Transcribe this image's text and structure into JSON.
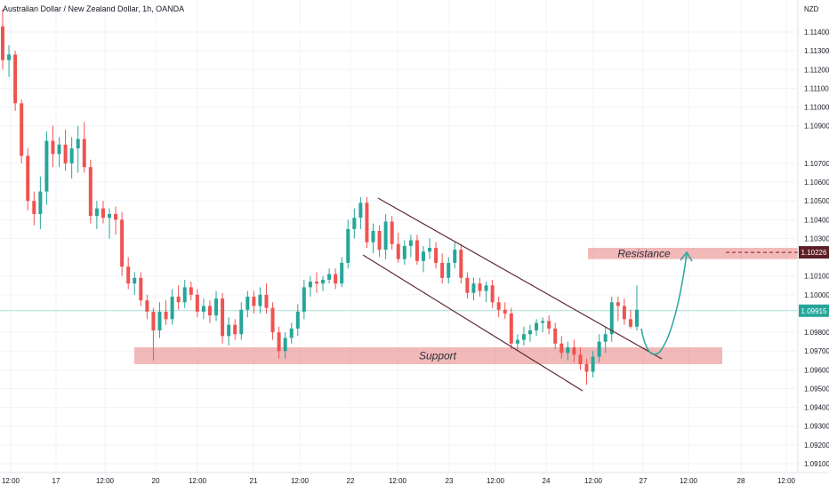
{
  "header": {
    "symbol_title": "Australian Dollar / New Zealand Dollar, 1h, OANDA",
    "currency": "NZD"
  },
  "chart_data": {
    "type": "candlestick",
    "title": "Australian Dollar / New Zealand Dollar, 1h, OANDA",
    "ylabel": "NZD",
    "ylim": [
      1.0905,
      1.1155
    ],
    "y_ticks": [
      1.114,
      1.113,
      1.112,
      1.111,
      1.11,
      1.109,
      1.107,
      1.106,
      1.105,
      1.104,
      1.103,
      1.101,
      1.1,
      1.098,
      1.097,
      1.096,
      1.095,
      1.094,
      1.093,
      1.092,
      1.091
    ],
    "x_ticks": [
      "12:00",
      "17",
      "12:00",
      "20",
      "12:00",
      "21",
      "12:00",
      "22",
      "12:00",
      "23",
      "12:00",
      "24",
      "12:00",
      "27",
      "12:00",
      "28",
      "12:00"
    ],
    "price_labels": {
      "resistance_level": "1.10226",
      "current_price": "1.09915"
    },
    "current_price": 1.09915,
    "annotations": {
      "resistance": {
        "label": "Resistance",
        "price_from": 1.1019,
        "price_to": 1.1025
      },
      "support": {
        "label": "Support",
        "price_from": 1.0963,
        "price_to": 1.0972
      }
    },
    "colors": {
      "up": "#26a69a",
      "down": "#ef5350",
      "zone": "#e57373",
      "channel": "#5d2a35",
      "arrow": "#26a69a",
      "current_line": "#26a69a"
    },
    "candles": [
      {
        "o": 1.1143,
        "h": 1.1152,
        "l": 1.112,
        "c": 1.1125
      },
      {
        "o": 1.1125,
        "h": 1.1133,
        "l": 1.1116,
        "c": 1.1128
      },
      {
        "o": 1.1128,
        "h": 1.113,
        "l": 1.1098,
        "c": 1.1102
      },
      {
        "o": 1.1102,
        "h": 1.1104,
        "l": 1.107,
        "c": 1.1074
      },
      {
        "o": 1.1074,
        "h": 1.1078,
        "l": 1.1045,
        "c": 1.105
      },
      {
        "o": 1.105,
        "h": 1.1055,
        "l": 1.1037,
        "c": 1.1043
      },
      {
        "o": 1.1043,
        "h": 1.1063,
        "l": 1.1035,
        "c": 1.1055
      },
      {
        "o": 1.1055,
        "h": 1.1087,
        "l": 1.1048,
        "c": 1.1082
      },
      {
        "o": 1.1082,
        "h": 1.109,
        "l": 1.1068,
        "c": 1.1075
      },
      {
        "o": 1.1075,
        "h": 1.1084,
        "l": 1.1068,
        "c": 1.108
      },
      {
        "o": 1.108,
        "h": 1.1088,
        "l": 1.1066,
        "c": 1.107
      },
      {
        "o": 1.107,
        "h": 1.1084,
        "l": 1.1062,
        "c": 1.1078
      },
      {
        "o": 1.1078,
        "h": 1.109,
        "l": 1.1065,
        "c": 1.1083
      },
      {
        "o": 1.1083,
        "h": 1.1092,
        "l": 1.1065,
        "c": 1.1068
      },
      {
        "o": 1.1068,
        "h": 1.1072,
        "l": 1.1038,
        "c": 1.1042
      },
      {
        "o": 1.1042,
        "h": 1.105,
        "l": 1.1035,
        "c": 1.1046
      },
      {
        "o": 1.1046,
        "h": 1.105,
        "l": 1.1038,
        "c": 1.1041
      },
      {
        "o": 1.1041,
        "h": 1.1046,
        "l": 1.103,
        "c": 1.1043
      },
      {
        "o": 1.1043,
        "h": 1.1047,
        "l": 1.1032,
        "c": 1.104
      },
      {
        "o": 1.104,
        "h": 1.1044,
        "l": 1.101,
        "c": 1.1015
      },
      {
        "o": 1.1015,
        "h": 1.102,
        "l": 1.1003,
        "c": 1.1006
      },
      {
        "o": 1.1006,
        "h": 1.1012,
        "l": 1.1,
        "c": 1.1009
      },
      {
        "o": 1.1009,
        "h": 1.1012,
        "l": 1.0994,
        "c": 1.0997
      },
      {
        "o": 1.0997,
        "h": 1.1,
        "l": 1.0987,
        "c": 1.0991
      },
      {
        "o": 1.0991,
        "h": 1.0993,
        "l": 1.0965,
        "c": 1.0981
      },
      {
        "o": 1.0981,
        "h": 1.0996,
        "l": 1.0977,
        "c": 1.0991
      },
      {
        "o": 1.0991,
        "h": 1.0997,
        "l": 1.0984,
        "c": 1.0987
      },
      {
        "o": 1.0987,
        "h": 1.1003,
        "l": 1.0984,
        "c": 1.0999
      },
      {
        "o": 1.0999,
        "h": 1.1005,
        "l": 1.0992,
        "c": 1.0996
      },
      {
        "o": 1.0996,
        "h": 1.1008,
        "l": 1.0993,
        "c": 1.1004
      },
      {
        "o": 1.1004,
        "h": 1.1007,
        "l": 1.0997,
        "c": 1.1
      },
      {
        "o": 1.1,
        "h": 1.1003,
        "l": 1.0988,
        "c": 1.0991
      },
      {
        "o": 1.0991,
        "h": 1.0998,
        "l": 1.0987,
        "c": 1.0994
      },
      {
        "o": 1.0994,
        "h": 1.0997,
        "l": 1.0985,
        "c": 1.0989
      },
      {
        "o": 1.0989,
        "h": 1.1002,
        "l": 1.0986,
        "c": 1.0998
      },
      {
        "o": 1.0998,
        "h": 1.1001,
        "l": 1.0974,
        "c": 1.0978
      },
      {
        "o": 1.0978,
        "h": 1.0988,
        "l": 1.0973,
        "c": 1.0984
      },
      {
        "o": 1.0984,
        "h": 1.0987,
        "l": 1.0976,
        "c": 1.0979
      },
      {
        "o": 1.0979,
        "h": 1.0996,
        "l": 1.0976,
        "c": 1.0992
      },
      {
        "o": 1.0992,
        "h": 1.1002,
        "l": 1.0988,
        "c": 1.0999
      },
      {
        "o": 1.0999,
        "h": 1.1002,
        "l": 1.099,
        "c": 1.0994
      },
      {
        "o": 1.0994,
        "h": 1.1004,
        "l": 1.099,
        "c": 1.1
      },
      {
        "o": 1.1,
        "h": 1.1006,
        "l": 1.099,
        "c": 1.0993
      },
      {
        "o": 1.0993,
        "h": 1.0996,
        "l": 1.0976,
        "c": 1.098
      },
      {
        "o": 1.098,
        "h": 1.0983,
        "l": 1.0966,
        "c": 1.097
      },
      {
        "o": 1.097,
        "h": 1.098,
        "l": 1.0966,
        "c": 1.0977
      },
      {
        "o": 1.0977,
        "h": 1.0985,
        "l": 1.0974,
        "c": 1.0982
      },
      {
        "o": 1.0982,
        "h": 1.0995,
        "l": 1.0978,
        "c": 1.0991
      },
      {
        "o": 1.0991,
        "h": 1.1008,
        "l": 1.0987,
        "c": 1.1004
      },
      {
        "o": 1.1004,
        "h": 1.101,
        "l": 1.0999,
        "c": 1.1007
      },
      {
        "o": 1.1007,
        "h": 1.1012,
        "l": 1.1001,
        "c": 1.1006
      },
      {
        "o": 1.1006,
        "h": 1.101,
        "l": 1.1002,
        "c": 1.1008
      },
      {
        "o": 1.1008,
        "h": 1.1014,
        "l": 1.1006,
        "c": 1.1011
      },
      {
        "o": 1.1011,
        "h": 1.1014,
        "l": 1.1003,
        "c": 1.1006
      },
      {
        "o": 1.1006,
        "h": 1.102,
        "l": 1.1004,
        "c": 1.1017
      },
      {
        "o": 1.1017,
        "h": 1.104,
        "l": 1.1014,
        "c": 1.1035
      },
      {
        "o": 1.1035,
        "h": 1.1046,
        "l": 1.103,
        "c": 1.1041
      },
      {
        "o": 1.1041,
        "h": 1.1052,
        "l": 1.1035,
        "c": 1.1049
      },
      {
        "o": 1.1049,
        "h": 1.1052,
        "l": 1.1025,
        "c": 1.1028
      },
      {
        "o": 1.1028,
        "h": 1.1038,
        "l": 1.1022,
        "c": 1.1034
      },
      {
        "o": 1.1034,
        "h": 1.1037,
        "l": 1.102,
        "c": 1.1024
      },
      {
        "o": 1.1024,
        "h": 1.1043,
        "l": 1.1019,
        "c": 1.1039
      },
      {
        "o": 1.1039,
        "h": 1.1042,
        "l": 1.1024,
        "c": 1.1027
      },
      {
        "o": 1.1027,
        "h": 1.1033,
        "l": 1.1017,
        "c": 1.1019
      },
      {
        "o": 1.1019,
        "h": 1.1029,
        "l": 1.1016,
        "c": 1.1026
      },
      {
        "o": 1.1026,
        "h": 1.1032,
        "l": 1.102,
        "c": 1.1029
      },
      {
        "o": 1.1029,
        "h": 1.1032,
        "l": 1.1016,
        "c": 1.1018
      },
      {
        "o": 1.1018,
        "h": 1.1026,
        "l": 1.1012,
        "c": 1.1023
      },
      {
        "o": 1.1023,
        "h": 1.103,
        "l": 1.1019,
        "c": 1.1025
      },
      {
        "o": 1.1025,
        "h": 1.1028,
        "l": 1.1014,
        "c": 1.1017
      },
      {
        "o": 1.1017,
        "h": 1.1022,
        "l": 1.1006,
        "c": 1.1009
      },
      {
        "o": 1.1009,
        "h": 1.102,
        "l": 1.1006,
        "c": 1.1017
      },
      {
        "o": 1.1017,
        "h": 1.1028,
        "l": 1.1014,
        "c": 1.1024
      },
      {
        "o": 1.1024,
        "h": 1.1027,
        "l": 1.1006,
        "c": 1.1009
      },
      {
        "o": 1.1009,
        "h": 1.1012,
        "l": 1.0998,
        "c": 1.1001
      },
      {
        "o": 1.1001,
        "h": 1.1009,
        "l": 1.0997,
        "c": 1.1006
      },
      {
        "o": 1.1006,
        "h": 1.1009,
        "l": 1.0999,
        "c": 1.1002
      },
      {
        "o": 1.1002,
        "h": 1.1007,
        "l": 1.0996,
        "c": 1.1005
      },
      {
        "o": 1.1005,
        "h": 1.1008,
        "l": 1.0993,
        "c": 1.0996
      },
      {
        "o": 1.0996,
        "h": 1.0999,
        "l": 1.0988,
        "c": 1.0992
      },
      {
        "o": 1.0992,
        "h": 1.0996,
        "l": 1.0987,
        "c": 1.099
      },
      {
        "o": 1.099,
        "h": 1.0993,
        "l": 1.0971,
        "c": 1.0974
      },
      {
        "o": 1.0974,
        "h": 1.0979,
        "l": 1.097,
        "c": 1.0976
      },
      {
        "o": 1.0976,
        "h": 1.0983,
        "l": 1.0973,
        "c": 1.0979
      },
      {
        "o": 1.0979,
        "h": 1.0984,
        "l": 1.0975,
        "c": 1.0981
      },
      {
        "o": 1.0981,
        "h": 1.0987,
        "l": 1.0978,
        "c": 1.0985
      },
      {
        "o": 1.0985,
        "h": 1.0988,
        "l": 1.098,
        "c": 1.0986
      },
      {
        "o": 1.0986,
        "h": 1.0989,
        "l": 1.0979,
        "c": 1.0982
      },
      {
        "o": 1.0982,
        "h": 1.0985,
        "l": 1.0971,
        "c": 1.0974
      },
      {
        "o": 1.0974,
        "h": 1.0978,
        "l": 1.0966,
        "c": 1.0969
      },
      {
        "o": 1.0969,
        "h": 1.0975,
        "l": 1.0965,
        "c": 1.0972
      },
      {
        "o": 1.0972,
        "h": 1.0976,
        "l": 1.0964,
        "c": 1.0968
      },
      {
        "o": 1.0968,
        "h": 1.0972,
        "l": 1.096,
        "c": 1.0963
      },
      {
        "o": 1.0963,
        "h": 1.0966,
        "l": 1.0952,
        "c": 1.0959
      },
      {
        "o": 1.0959,
        "h": 1.097,
        "l": 1.0956,
        "c": 1.0967
      },
      {
        "o": 1.0967,
        "h": 1.0979,
        "l": 1.0964,
        "c": 1.0975
      },
      {
        "o": 1.0975,
        "h": 1.0983,
        "l": 1.0969,
        "c": 1.0979
      },
      {
        "o": 1.0979,
        "h": 1.0999,
        "l": 1.0975,
        "c": 1.0996
      },
      {
        "o": 1.0996,
        "h": 1.0999,
        "l": 1.0986,
        "c": 1.0994
      },
      {
        "o": 1.0994,
        "h": 1.0998,
        "l": 1.0984,
        "c": 1.0987
      },
      {
        "o": 1.0987,
        "h": 1.0992,
        "l": 1.0982,
        "c": 1.0983
      },
      {
        "o": 1.0983,
        "h": 1.1005,
        "l": 1.0981,
        "c": 1.0992
      }
    ]
  }
}
